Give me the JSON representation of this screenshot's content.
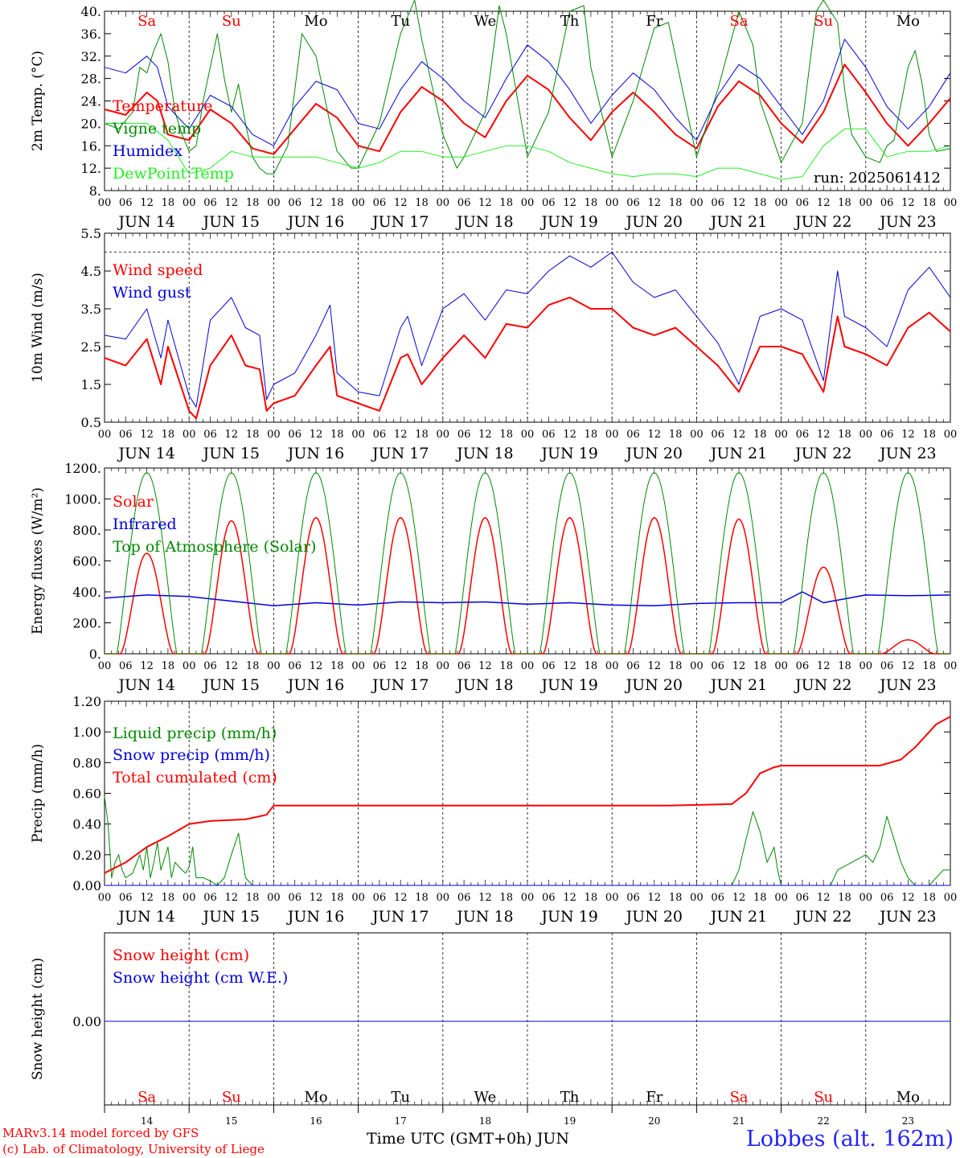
{
  "meta": {
    "model_line": "MARv3.14 model forced by GFS",
    "copyright_line": "(c) Lab. of Climatology, University of Liege",
    "xaxis_title": "Time UTC (GMT+0h) JUN",
    "station": "Lobbes (alt. 162m)",
    "run_label": "run: 2025061412"
  },
  "time_axis": {
    "days": [
      "JUN 14",
      "JUN 15",
      "JUN 16",
      "JUN 17",
      "JUN 18",
      "JUN 19",
      "JUN 20",
      "JUN 21",
      "JUN 22",
      "JUN 23"
    ],
    "day_numbers": [
      "14",
      "15",
      "16",
      "17",
      "18",
      "19",
      "20",
      "21",
      "22",
      "23"
    ],
    "weekdays": [
      "Sa",
      "Su",
      "Mo",
      "Tu",
      "We",
      "Th",
      "Fr",
      "Sa",
      "Su",
      "Mo"
    ],
    "weekday_colors": [
      "#ff0000",
      "#ff0000",
      "#000000",
      "#000000",
      "#000000",
      "#000000",
      "#000000",
      "#ff0000",
      "#ff0000",
      "#000000"
    ],
    "hour_labels": [
      "00",
      "06",
      "12",
      "18"
    ],
    "final_hour_label": "00"
  },
  "colors": {
    "red": "#ff0000",
    "green": "#008800",
    "blue": "#0000dd",
    "lightgreen": "#22ee22"
  },
  "chart_data": [
    {
      "type": "line",
      "id": "temp",
      "ylabel": "2m Temp. (°C)",
      "ylim": [
        8,
        40
      ],
      "yticks": [
        "8.",
        "12.",
        "16.",
        "20.",
        "24.",
        "28.",
        "32.",
        "36.",
        "40."
      ],
      "x_unit": "hours since JUN 14 00 UTC",
      "legend": [
        "Temperature",
        "Vigne temp",
        "Humidex",
        "DewPoint Temp"
      ],
      "series": [
        {
          "name": "Temperature",
          "color": "#ff0000",
          "width": 2,
          "x": [
            0,
            6,
            12,
            15,
            18,
            24,
            30,
            36,
            42,
            48,
            54,
            60,
            66,
            72,
            78,
            84,
            90,
            96,
            102,
            108,
            114,
            120,
            126,
            132,
            138,
            144,
            150,
            156,
            162,
            168,
            174,
            180,
            186,
            192,
            198,
            204,
            210,
            216,
            222,
            228,
            234,
            240
          ],
          "y": [
            22.5,
            21.5,
            25.5,
            24,
            18,
            17,
            22.5,
            20,
            15.5,
            14.5,
            19,
            23.5,
            21,
            16,
            15,
            22,
            26.5,
            24,
            20,
            17.5,
            24,
            28.5,
            26,
            21,
            17,
            22,
            25.5,
            22,
            18,
            15.5,
            23,
            27.5,
            25,
            20,
            16.5,
            22,
            30.5,
            25.5,
            20,
            16,
            20,
            24.5
          ]
        },
        {
          "name": "Vigne temp",
          "color": "#008800",
          "width": 1,
          "x": [
            0,
            4,
            8,
            10,
            12,
            14,
            16,
            18,
            20,
            22,
            24,
            26,
            28,
            30,
            32,
            34,
            36,
            38,
            40,
            42,
            44,
            46,
            48,
            52,
            56,
            60,
            64,
            66,
            70,
            72,
            78,
            84,
            88,
            90,
            96,
            100,
            102,
            108,
            112,
            114,
            120,
            126,
            132,
            136,
            138,
            144,
            150,
            156,
            160,
            162,
            168,
            174,
            180,
            184,
            186,
            192,
            198,
            202,
            204,
            208,
            210,
            212,
            216,
            220,
            222,
            224,
            228,
            230,
            232,
            234,
            236,
            240
          ],
          "y": [
            20,
            19,
            22,
            30,
            29,
            33,
            36,
            31,
            22,
            18,
            15,
            16,
            24,
            30,
            36,
            28,
            22,
            27,
            20,
            14,
            12,
            11,
            11,
            16,
            36,
            32,
            20,
            15,
            12,
            12,
            20,
            36,
            42,
            35,
            18,
            12,
            14,
            22,
            41,
            36,
            14,
            22,
            40,
            41,
            30,
            14,
            24,
            37,
            38,
            32,
            14,
            26,
            40,
            34,
            24,
            13,
            20,
            40,
            42,
            38,
            26,
            18,
            14,
            13,
            16,
            17,
            30,
            33,
            27,
            18,
            15,
            15.5
          ]
        },
        {
          "name": "Humidex",
          "color": "#0000dd",
          "width": 1,
          "x": [
            0,
            6,
            12,
            15,
            18,
            24,
            30,
            36,
            42,
            48,
            54,
            60,
            66,
            72,
            78,
            84,
            90,
            96,
            102,
            108,
            114,
            120,
            126,
            132,
            138,
            144,
            150,
            156,
            162,
            168,
            174,
            180,
            186,
            192,
            198,
            204,
            210,
            216,
            222,
            228,
            234,
            240
          ],
          "y": [
            30,
            29,
            32,
            30,
            23,
            19,
            25,
            23,
            18,
            16,
            23,
            27.5,
            26,
            20,
            19,
            26,
            31,
            28,
            24,
            21,
            28,
            34,
            31,
            26,
            20,
            25,
            29,
            26,
            21,
            17,
            25,
            30.5,
            28,
            23,
            18,
            24,
            35,
            30,
            23,
            19,
            23,
            29
          ]
        },
        {
          "name": "DewPoint Temp",
          "color": "#22ee22",
          "width": 1,
          "x": [
            0,
            6,
            12,
            18,
            24,
            30,
            36,
            42,
            48,
            54,
            60,
            66,
            72,
            78,
            84,
            90,
            96,
            102,
            108,
            114,
            120,
            126,
            132,
            138,
            144,
            150,
            156,
            162,
            168,
            174,
            180,
            186,
            192,
            198,
            204,
            210,
            216,
            222,
            228,
            234,
            240
          ],
          "y": [
            20,
            20,
            20,
            17,
            11,
            12,
            15,
            14,
            14,
            14,
            14,
            13,
            12,
            13,
            15,
            15,
            14,
            14,
            15,
            16,
            16,
            15,
            13,
            12,
            11,
            10.5,
            11,
            11,
            10.5,
            12,
            12,
            11,
            10,
            10.5,
            16,
            19,
            19,
            14,
            15,
            15,
            16
          ]
        }
      ]
    },
    {
      "type": "line",
      "id": "wind",
      "ylabel": "10m Wind (m/s)",
      "ylim": [
        0.5,
        5.5
      ],
      "yticks": [
        "0.5",
        "1.5",
        "2.5",
        "3.5",
        "4.5",
        "5.5"
      ],
      "ref_line": 5.0,
      "legend": [
        "Wind speed",
        "Wind gust"
      ],
      "series": [
        {
          "name": "Wind speed",
          "color": "#ff0000",
          "width": 2,
          "x": [
            0,
            6,
            12,
            16,
            18,
            24,
            26,
            30,
            36,
            40,
            44,
            46,
            48,
            54,
            60,
            64,
            66,
            72,
            78,
            84,
            86,
            90,
            96,
            102,
            108,
            114,
            120,
            126,
            132,
            138,
            144,
            150,
            156,
            162,
            168,
            174,
            180,
            186,
            192,
            198,
            204,
            208,
            210,
            216,
            222,
            228,
            234,
            240
          ],
          "y": [
            2.2,
            2,
            2.7,
            1.5,
            2.5,
            0.8,
            0.6,
            2,
            2.8,
            2,
            1.9,
            0.8,
            1,
            1.2,
            2,
            2.5,
            1.2,
            1,
            0.8,
            2.2,
            2.3,
            1.5,
            2.2,
            2.8,
            2.2,
            3.1,
            3,
            3.6,
            3.8,
            3.5,
            3.5,
            3,
            2.8,
            3,
            2.5,
            2,
            1.3,
            2.5,
            2.5,
            2.3,
            1.3,
            3.3,
            2.5,
            2.3,
            2,
            3,
            3.4,
            2.9
          ]
        },
        {
          "name": "Wind gust",
          "color": "#0000dd",
          "width": 1,
          "x": [
            0,
            6,
            12,
            16,
            18,
            24,
            26,
            30,
            36,
            40,
            44,
            46,
            48,
            54,
            60,
            64,
            66,
            72,
            78,
            84,
            86,
            90,
            96,
            102,
            108,
            114,
            120,
            126,
            132,
            138,
            144,
            150,
            156,
            162,
            168,
            174,
            180,
            186,
            192,
            198,
            204,
            208,
            210,
            216,
            222,
            228,
            234,
            240
          ],
          "y": [
            2.8,
            2.7,
            3.5,
            2.2,
            3.2,
            1.2,
            0.9,
            3.2,
            3.8,
            3,
            2.8,
            1.1,
            1.5,
            1.8,
            2.8,
            3.6,
            1.8,
            1.3,
            1.2,
            3,
            3.3,
            2,
            3.5,
            3.9,
            3.2,
            4,
            3.9,
            4.5,
            4.9,
            4.6,
            5,
            4.2,
            3.8,
            4,
            3.3,
            2.6,
            1.5,
            3.3,
            3.5,
            3.2,
            1.6,
            4.5,
            3.3,
            3,
            2.5,
            4,
            4.6,
            3.8
          ]
        }
      ]
    },
    {
      "type": "line",
      "id": "energy",
      "ylabel": "Energy fluxes (W/m²)",
      "ylim": [
        0,
        1200
      ],
      "yticks": [
        "0.",
        "200.",
        "400.",
        "600.",
        "800.",
        "1000.",
        "1200."
      ],
      "legend": [
        "Solar",
        "Infrared",
        "Top of Atmosphere (Solar)"
      ],
      "toa_peak": 1170,
      "solar_peaks": [
        650,
        860,
        880,
        880,
        880,
        880,
        880,
        870,
        560,
        90
      ],
      "series": [
        {
          "name": "Solar",
          "color": "#ff0000",
          "width": 1.5,
          "daily_peak": [
            650,
            860,
            880,
            880,
            880,
            880,
            880,
            870,
            560,
            90
          ]
        },
        {
          "name": "Infrared",
          "color": "#0000dd",
          "width": 1.5,
          "x": [
            0,
            12,
            24,
            36,
            48,
            60,
            72,
            84,
            96,
            108,
            120,
            132,
            144,
            156,
            168,
            180,
            192,
            198,
            204,
            216,
            228,
            240
          ],
          "y": [
            360,
            380,
            370,
            340,
            310,
            330,
            315,
            335,
            330,
            335,
            320,
            330,
            315,
            310,
            325,
            330,
            330,
            400,
            330,
            380,
            375,
            380
          ]
        },
        {
          "name": "Top of Atmosphere (Solar)",
          "color": "#008800",
          "width": 1,
          "daily_peak": [
            1170,
            1170,
            1170,
            1170,
            1170,
            1170,
            1170,
            1170,
            1170,
            1170
          ]
        }
      ]
    },
    {
      "type": "line",
      "id": "precip",
      "ylabel": "Precip (mm/h)",
      "ylim": [
        0,
        1.2
      ],
      "yticks": [
        "0.00",
        "0.20",
        "0.40",
        "0.60",
        "0.80",
        "1.00",
        "1.20"
      ],
      "legend": [
        "Liquid precip (mm/h)",
        "Snow precip (mm/h)",
        "Total cumulated (cm)"
      ],
      "series": [
        {
          "name": "Liquid precip (mm/h)",
          "color": "#008800",
          "width": 1,
          "x": [
            0,
            1,
            2,
            3,
            4,
            5,
            6,
            8,
            10,
            11,
            12,
            13,
            14,
            15,
            16,
            18,
            19,
            20,
            22,
            23,
            24,
            25,
            26,
            28,
            30,
            32,
            34,
            36,
            38,
            40,
            42,
            43,
            44,
            46,
            48,
            50,
            60,
            70,
            80,
            90,
            100,
            110,
            120,
            130,
            140,
            150,
            160,
            170,
            178,
            180,
            182,
            184,
            186,
            188,
            190,
            191,
            192,
            200,
            204,
            206,
            208,
            212,
            216,
            218,
            220,
            222,
            224,
            226,
            228,
            230,
            232,
            234,
            236,
            238,
            240
          ],
          "y": [
            0.58,
            0.4,
            0.05,
            0.15,
            0.2,
            0.1,
            0.05,
            0.08,
            0.2,
            0.1,
            0.25,
            0.05,
            0.15,
            0.28,
            0.1,
            0.25,
            0.05,
            0.15,
            0.1,
            0.08,
            0.12,
            0.25,
            0.05,
            0.05,
            0.03,
            0,
            0.05,
            0.2,
            0.34,
            0.05,
            0,
            0,
            0,
            0,
            0,
            0,
            0,
            0,
            0,
            0,
            0,
            0,
            0,
            0,
            0,
            0,
            0,
            0,
            0,
            0.1,
            0.3,
            0.48,
            0.35,
            0.15,
            0.25,
            0.1,
            0,
            0,
            0,
            0,
            0.1,
            0.15,
            0.2,
            0.15,
            0.25,
            0.45,
            0.3,
            0.15,
            0.05,
            0,
            0,
            0,
            0.05,
            0.1,
            0.1
          ]
        },
        {
          "name": "Snow precip (mm/h)",
          "color": "#0000dd",
          "width": 1,
          "x": [
            0,
            240
          ],
          "y": [
            0,
            0
          ]
        },
        {
          "name": "Total cumulated (cm)",
          "color": "#ff0000",
          "width": 2,
          "x": [
            0,
            6,
            12,
            18,
            24,
            30,
            40,
            46,
            48,
            60,
            96,
            120,
            160,
            178,
            182,
            186,
            190,
            192,
            210,
            220,
            226,
            230,
            234,
            236,
            240
          ],
          "y": [
            0.08,
            0.15,
            0.25,
            0.32,
            0.4,
            0.42,
            0.43,
            0.46,
            0.52,
            0.52,
            0.52,
            0.52,
            0.52,
            0.53,
            0.6,
            0.73,
            0.77,
            0.78,
            0.78,
            0.78,
            0.82,
            0.9,
            1.0,
            1.05,
            1.1
          ]
        }
      ]
    },
    {
      "type": "line",
      "id": "snow",
      "ylabel": "Snow height (cm)",
      "yticks": [
        "0.00"
      ],
      "legend": [
        "Snow height (cm)",
        "Snow height (cm W.E.)"
      ],
      "series": [
        {
          "name": "Snow height (cm)",
          "color": "#ff0000",
          "width": 1,
          "x": [
            0,
            240
          ],
          "y": [
            0,
            0
          ]
        },
        {
          "name": "Snow height (cm W.E.)",
          "color": "#0000dd",
          "width": 1,
          "x": [
            0,
            240
          ],
          "y": [
            0,
            0
          ]
        }
      ]
    }
  ]
}
